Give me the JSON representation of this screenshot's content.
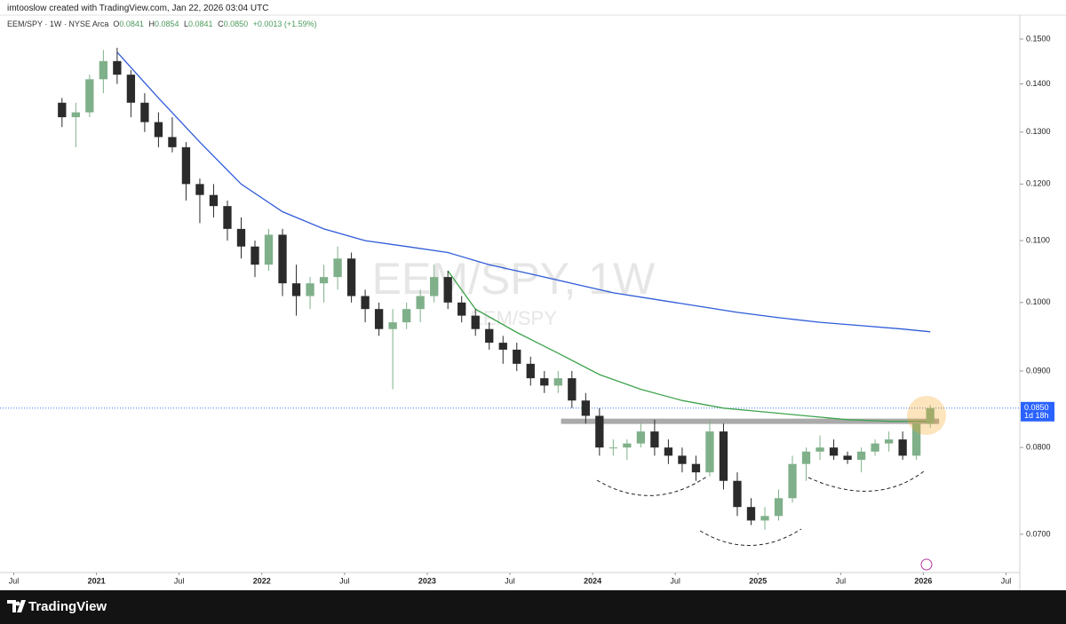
{
  "header": {
    "credit": "imtooslow created with TradingView.com, Jan 22, 2026 03:04 UTC"
  },
  "legend": {
    "symbol": "EEM/SPY · 1W · NYSE Arca",
    "o_label": "O",
    "o": "0.0841",
    "h_label": "H",
    "h": "0.0854",
    "l_label": "L",
    "l": "0.0841",
    "c_label": "C",
    "c": "0.0850",
    "change": "+0.0013 (+1.59%)"
  },
  "watermark": {
    "main": "EEM/SPY, 1W",
    "sub": "EEM/SPY"
  },
  "footer": {
    "brand": "TradingView"
  },
  "chart_data": {
    "type": "candlestick",
    "log_scale": true,
    "up_color": "#7fb08a",
    "down_color": "#2b2b2b",
    "x": [
      "2020-10",
      "2020-11",
      "2020-12",
      "2021-01",
      "2021-02",
      "2021-03",
      "2021-04",
      "2021-05",
      "2021-06",
      "2021-07",
      "2021-08",
      "2021-09",
      "2021-10",
      "2021-11",
      "2021-12",
      "2022-01",
      "2022-02",
      "2022-03",
      "2022-04",
      "2022-05",
      "2022-06",
      "2022-07",
      "2022-08",
      "2022-09",
      "2022-10",
      "2022-11",
      "2022-12",
      "2023-01",
      "2023-02",
      "2023-03",
      "2023-04",
      "2023-05",
      "2023-06",
      "2023-07",
      "2023-08",
      "2023-09",
      "2023-10",
      "2023-11",
      "2023-12",
      "2024-01",
      "2024-02",
      "2024-03",
      "2024-04",
      "2024-05",
      "2024-06",
      "2024-07",
      "2024-08",
      "2024-09",
      "2024-10",
      "2024-11",
      "2024-12",
      "2025-01",
      "2025-02",
      "2025-03",
      "2025-04",
      "2025-05",
      "2025-06",
      "2025-07",
      "2025-08",
      "2025-09",
      "2025-10",
      "2025-11",
      "2025-12",
      "2026-01"
    ],
    "open": [
      0.136,
      0.133,
      0.134,
      0.141,
      0.145,
      0.142,
      0.136,
      0.132,
      0.129,
      0.127,
      0.12,
      0.118,
      0.116,
      0.112,
      0.109,
      0.106,
      0.111,
      0.103,
      0.101,
      0.103,
      0.104,
      0.107,
      0.101,
      0.099,
      0.096,
      0.097,
      0.099,
      0.101,
      0.104,
      0.1,
      0.098,
      0.096,
      0.094,
      0.093,
      0.091,
      0.089,
      0.088,
      0.089,
      0.086,
      0.084,
      0.08,
      0.08,
      0.0805,
      0.082,
      0.08,
      0.079,
      0.078,
      0.077,
      0.082,
      0.076,
      0.073,
      0.0715,
      0.072,
      0.074,
      0.078,
      0.0795,
      0.08,
      0.079,
      0.0785,
      0.0795,
      0.0805,
      0.081,
      0.079,
      0.083
    ],
    "high": [
      0.137,
      0.136,
      0.142,
      0.1475,
      0.148,
      0.143,
      0.138,
      0.134,
      0.133,
      0.128,
      0.121,
      0.12,
      0.117,
      0.114,
      0.11,
      0.112,
      0.112,
      0.106,
      0.104,
      0.106,
      0.109,
      0.108,
      0.102,
      0.1,
      0.099,
      0.1,
      0.102,
      0.106,
      0.105,
      0.101,
      0.099,
      0.097,
      0.095,
      0.094,
      0.092,
      0.09,
      0.09,
      0.09,
      0.087,
      0.085,
      0.081,
      0.081,
      0.083,
      0.0835,
      0.081,
      0.08,
      0.079,
      0.0835,
      0.083,
      0.077,
      0.074,
      0.073,
      0.075,
      0.079,
      0.08,
      0.0815,
      0.081,
      0.0795,
      0.08,
      0.081,
      0.082,
      0.082,
      0.0835,
      0.0854
    ],
    "low": [
      0.131,
      0.127,
      0.133,
      0.138,
      0.14,
      0.133,
      0.13,
      0.127,
      0.126,
      0.117,
      0.113,
      0.114,
      0.11,
      0.107,
      0.104,
      0.105,
      0.101,
      0.098,
      0.099,
      0.1,
      0.102,
      0.1,
      0.097,
      0.095,
      0.0875,
      0.096,
      0.097,
      0.1,
      0.099,
      0.097,
      0.095,
      0.093,
      0.091,
      0.09,
      0.088,
      0.087,
      0.087,
      0.085,
      0.083,
      0.079,
      0.079,
      0.0785,
      0.08,
      0.079,
      0.078,
      0.077,
      0.076,
      0.0765,
      0.075,
      0.072,
      0.071,
      0.0705,
      0.0715,
      0.0735,
      0.076,
      0.0785,
      0.0785,
      0.078,
      0.077,
      0.079,
      0.0795,
      0.0785,
      0.0785,
      0.0825
    ],
    "close": [
      0.133,
      0.134,
      0.141,
      0.145,
      0.142,
      0.136,
      0.132,
      0.129,
      0.127,
      0.12,
      0.118,
      0.116,
      0.112,
      0.109,
      0.106,
      0.111,
      0.103,
      0.101,
      0.103,
      0.104,
      0.107,
      0.101,
      0.099,
      0.096,
      0.097,
      0.099,
      0.101,
      0.104,
      0.1,
      0.098,
      0.096,
      0.094,
      0.093,
      0.091,
      0.089,
      0.088,
      0.089,
      0.086,
      0.084,
      0.08,
      0.08,
      0.0805,
      0.082,
      0.08,
      0.079,
      0.078,
      0.077,
      0.082,
      0.076,
      0.073,
      0.0715,
      0.072,
      0.074,
      0.078,
      0.0795,
      0.08,
      0.079,
      0.0785,
      0.0795,
      0.0805,
      0.081,
      0.079,
      0.083,
      0.085
    ],
    "lines": [
      {
        "color": "#2f5bd9",
        "x": [
          "2021-02",
          "2021-05",
          "2021-08",
          "2021-11",
          "2022-02",
          "2022-05",
          "2022-08",
          "2022-11",
          "2023-02",
          "2023-05",
          "2023-08",
          "2023-11",
          "2024-02",
          "2024-05",
          "2024-08",
          "2024-11",
          "2025-02",
          "2025-05",
          "2025-08",
          "2025-11",
          "2026-01"
        ],
        "values": [
          0.147,
          0.137,
          0.128,
          0.12,
          0.115,
          0.112,
          0.11,
          0.109,
          0.108,
          0.106,
          0.1045,
          0.103,
          0.1015,
          0.1005,
          0.0995,
          0.0985,
          0.0977,
          0.097,
          0.0965,
          0.096,
          0.0956
        ]
      },
      {
        "color": "#3fa34d",
        "x": [
          "2023-02",
          "2023-04",
          "2023-07",
          "2023-10",
          "2024-01",
          "2024-04",
          "2024-07",
          "2024-10",
          "2025-01",
          "2025-04",
          "2025-07",
          "2025-10",
          "2026-01"
        ],
        "values": [
          0.105,
          0.099,
          0.0955,
          0.0925,
          0.0895,
          0.0875,
          0.086,
          0.085,
          0.0845,
          0.084,
          0.0835,
          0.0833,
          0.0833
        ]
      }
    ],
    "resistance": {
      "value": 0.0833,
      "from": "2023-12",
      "to": "2026-01",
      "color": "#aaaaaa"
    },
    "last_price": {
      "value": 0.085,
      "label": "0.0850",
      "countdown": "1d 18h",
      "color": "#2962ff"
    },
    "xlim": [
      "2020-06",
      "2026-08"
    ],
    "xticks": [
      {
        "value": "2020-07",
        "label": "Jul"
      },
      {
        "value": "2021-01",
        "label": "2021"
      },
      {
        "value": "2021-07",
        "label": "Jul"
      },
      {
        "value": "2022-01",
        "label": "2022"
      },
      {
        "value": "2022-07",
        "label": "Jul"
      },
      {
        "value": "2023-01",
        "label": "2023"
      },
      {
        "value": "2023-07",
        "label": "Jul"
      },
      {
        "value": "2024-01",
        "label": "2024"
      },
      {
        "value": "2024-07",
        "label": "Jul"
      },
      {
        "value": "2025-01",
        "label": "2025"
      },
      {
        "value": "2025-07",
        "label": "Jul"
      },
      {
        "value": "2026-01",
        "label": "2026"
      },
      {
        "value": "2026-07",
        "label": "Jul"
      }
    ],
    "ylim": [
      0.066,
      0.155
    ],
    "yticks": [
      {
        "value": 0.07,
        "label": "0.0700"
      },
      {
        "value": 0.08,
        "label": "0.0800"
      },
      {
        "value": 0.09,
        "label": "0.0900"
      },
      {
        "value": 0.1,
        "label": "0.1000"
      },
      {
        "value": 0.11,
        "label": "0.1100"
      },
      {
        "value": 0.12,
        "label": "0.1200"
      },
      {
        "value": 0.13,
        "label": "0.1300"
      },
      {
        "value": 0.14,
        "label": "0.1400"
      },
      {
        "value": 0.15,
        "label": "0.1500"
      }
    ]
  }
}
